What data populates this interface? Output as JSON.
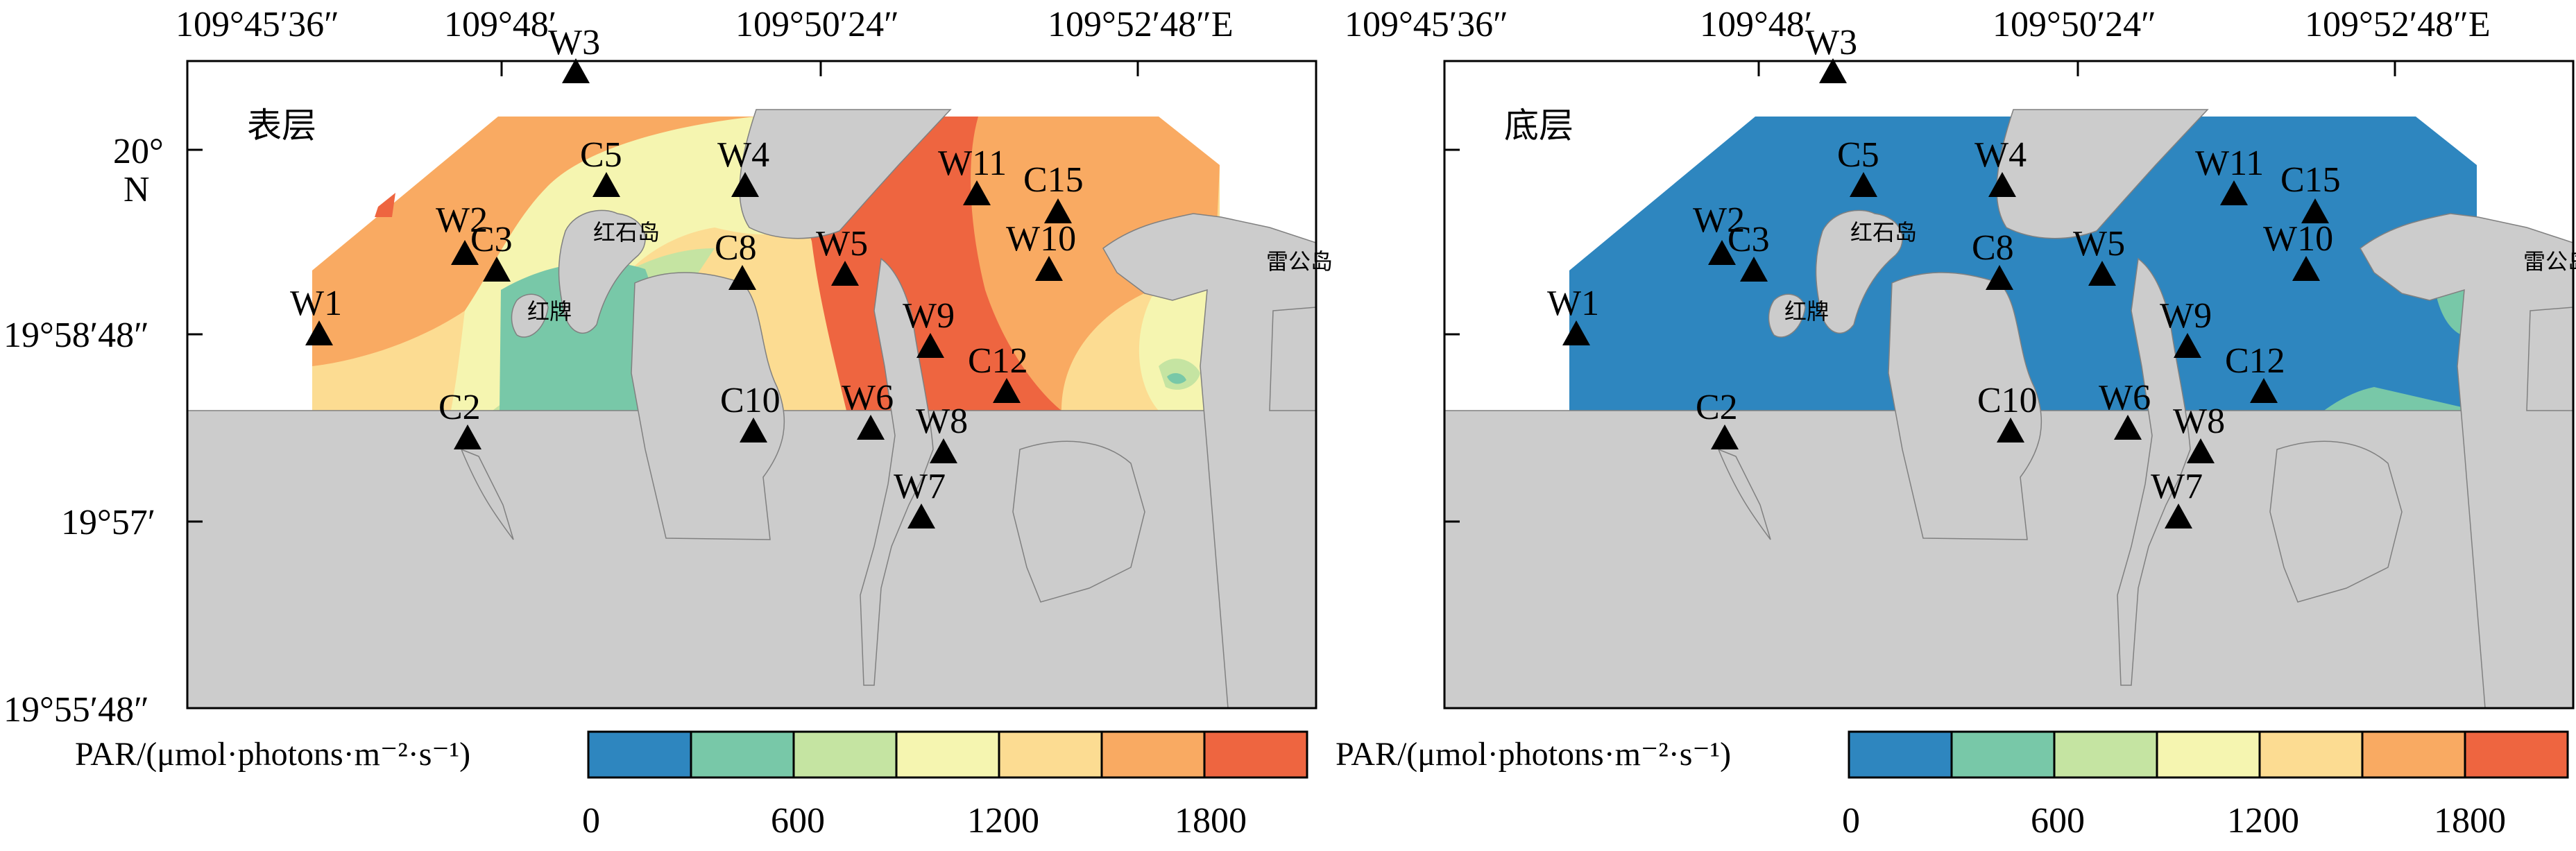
{
  "legend": {
    "title": "PAR/(μmol·photons·m⁻²·s⁻¹)",
    "tick_labels": [
      "0",
      "600",
      "1200",
      "1800"
    ],
    "colors": [
      "#2e86bf",
      "#78c8a8",
      "#c5e4a2",
      "#f5f5b0",
      "#fcdc92",
      "#f9aa62",
      "#ee6540"
    ]
  },
  "axes": {
    "x_tick_labels": [
      "109°45′36″",
      "109°48′",
      "109°50′24″",
      "109°52′48″E"
    ],
    "y_tick_labels": [
      "20°",
      "19°58′48″",
      "19°57′",
      "19°55′48″"
    ],
    "y_unit_label": "N"
  },
  "colors": {
    "land": "#cccccc",
    "sea_unsampled": "#ffffff",
    "marker": "#000000"
  },
  "places": [
    "红石岛",
    "红牌",
    "雷公岛"
  ],
  "stations": [
    "W1",
    "W2",
    "W3",
    "C2",
    "C3",
    "C5",
    "W4",
    "C8",
    "C10",
    "W5",
    "W6",
    "W7",
    "W8",
    "W9",
    "W11",
    "C12",
    "C15",
    "W10"
  ],
  "panels": [
    {
      "id": "surface",
      "title": "表层"
    },
    {
      "id": "bottom",
      "title": "底层"
    }
  ]
}
